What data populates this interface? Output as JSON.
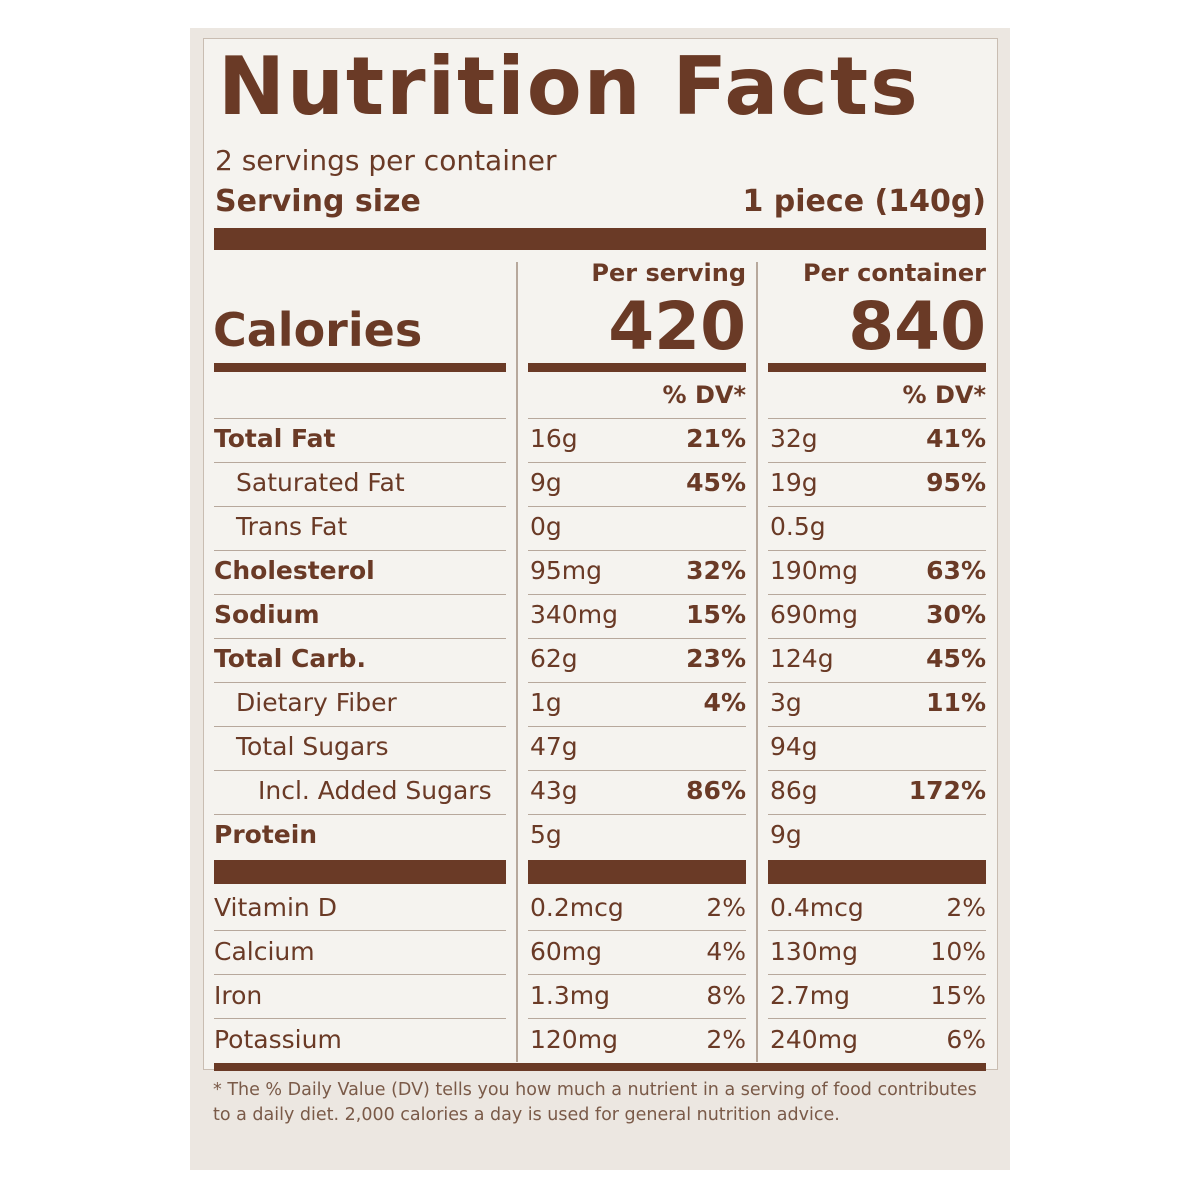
{
  "title": "Nutrition Facts",
  "servings_per_container": "2 servings per container",
  "serving_size": {
    "label": "Serving size",
    "value": "1 piece (140g)"
  },
  "columns": {
    "per_serving": "Per serving",
    "per_container": "Per container"
  },
  "calories": {
    "label": "Calories",
    "per_serving": "420",
    "per_container": "840"
  },
  "dv_header": "% DV*",
  "nutrients": [
    {
      "name": "Total Fat",
      "bold": true,
      "indent": 0,
      "serving_amount": "16g",
      "serving_dv": "21%",
      "container_amount": "32g",
      "container_dv": "41%"
    },
    {
      "name": "Saturated Fat",
      "bold": false,
      "indent": 1,
      "serving_amount": "9g",
      "serving_dv": "45%",
      "container_amount": "19g",
      "container_dv": "95%"
    },
    {
      "name": "Trans Fat",
      "bold": false,
      "indent": 1,
      "serving_amount": "0g",
      "serving_dv": "",
      "container_amount": "0.5g",
      "container_dv": ""
    },
    {
      "name": "Cholesterol",
      "bold": true,
      "indent": 0,
      "serving_amount": "95mg",
      "serving_dv": "32%",
      "container_amount": "190mg",
      "container_dv": "63%"
    },
    {
      "name": "Sodium",
      "bold": true,
      "indent": 0,
      "serving_amount": "340mg",
      "serving_dv": "15%",
      "container_amount": "690mg",
      "container_dv": "30%"
    },
    {
      "name": "Total Carb.",
      "bold": true,
      "indent": 0,
      "serving_amount": "62g",
      "serving_dv": "23%",
      "container_amount": "124g",
      "container_dv": "45%"
    },
    {
      "name": "Dietary Fiber",
      "bold": false,
      "indent": 1,
      "serving_amount": "1g",
      "serving_dv": "4%",
      "container_amount": "3g",
      "container_dv": "11%"
    },
    {
      "name": "Total Sugars",
      "bold": false,
      "indent": 1,
      "serving_amount": "47g",
      "serving_dv": "",
      "container_amount": "94g",
      "container_dv": ""
    },
    {
      "name": "Incl. Added Sugars",
      "bold": false,
      "indent": 2,
      "serving_amount": "43g",
      "serving_dv": "86%",
      "container_amount": "86g",
      "container_dv": "172%"
    },
    {
      "name": "Protein",
      "bold": true,
      "indent": 0,
      "serving_amount": "5g",
      "serving_dv": "",
      "container_amount": "9g",
      "container_dv": ""
    }
  ],
  "vitamins": [
    {
      "name": "Vitamin D",
      "serving_amount": "0.2mcg",
      "serving_dv": "2%",
      "container_amount": "0.4mcg",
      "container_dv": "2%"
    },
    {
      "name": "Calcium",
      "serving_amount": "60mg",
      "serving_dv": "4%",
      "container_amount": "130mg",
      "container_dv": "10%"
    },
    {
      "name": "Iron",
      "serving_amount": "1.3mg",
      "serving_dv": "8%",
      "container_amount": "2.7mg",
      "container_dv": "15%"
    },
    {
      "name": "Potassium",
      "serving_amount": "120mg",
      "serving_dv": "2%",
      "container_amount": "240mg",
      "container_dv": "6%"
    }
  ],
  "footnote": "* The % Daily Value (DV) tells you how much a nutrient in a serving of food contributes to a daily diet. 2,000 calories a day is used for general nutrition advice.",
  "colors": {
    "ink": "#6a3a26",
    "background": "#f5f3ef",
    "rule": "#b7a89c"
  }
}
